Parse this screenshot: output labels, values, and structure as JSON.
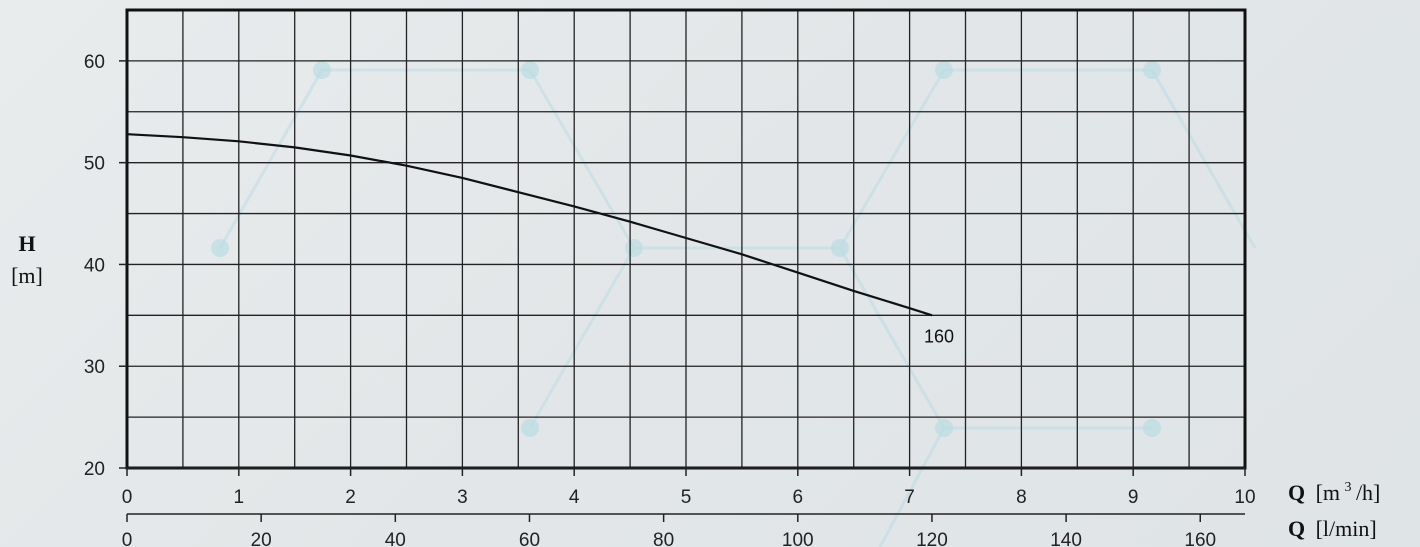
{
  "chart_data": {
    "type": "line",
    "title": "",
    "y_axis": {
      "label_symbol": "H",
      "label_unit": "[m]",
      "range": [
        20,
        65
      ],
      "ticks": [
        "20",
        "30",
        "40",
        "50",
        "60"
      ]
    },
    "x_axis_primary": {
      "label_symbol": "Q",
      "label_unit_prefix": "[m",
      "label_unit_superscript": "3",
      "label_unit_suffix": "/h]",
      "range": [
        0,
        10
      ],
      "ticks": [
        "0",
        "1",
        "2",
        "3",
        "4",
        "5",
        "6",
        "7",
        "8",
        "9",
        "10"
      ]
    },
    "x_axis_secondary": {
      "label_symbol": "Q",
      "label_unit": "[l/min]",
      "range": [
        0,
        166.67
      ],
      "ticks": [
        "0",
        "20",
        "40",
        "60",
        "80",
        "100",
        "120",
        "140",
        "160"
      ]
    },
    "grid": true,
    "series": [
      {
        "name": "160",
        "x": [
          0,
          0.5,
          1,
          1.5,
          2,
          2.5,
          3,
          3.5,
          4,
          4.5,
          5,
          5.5,
          6,
          6.5,
          7,
          7.2
        ],
        "y": [
          52.8,
          52.5,
          52.1,
          51.5,
          50.7,
          49.7,
          48.5,
          47.1,
          45.7,
          44.2,
          42.6,
          41.0,
          39.2,
          37.4,
          35.7,
          35.0
        ]
      }
    ]
  },
  "colors": {
    "grid": "#222222",
    "curve": "#111111",
    "frame": "#111111",
    "decor": "#b9dde3"
  }
}
